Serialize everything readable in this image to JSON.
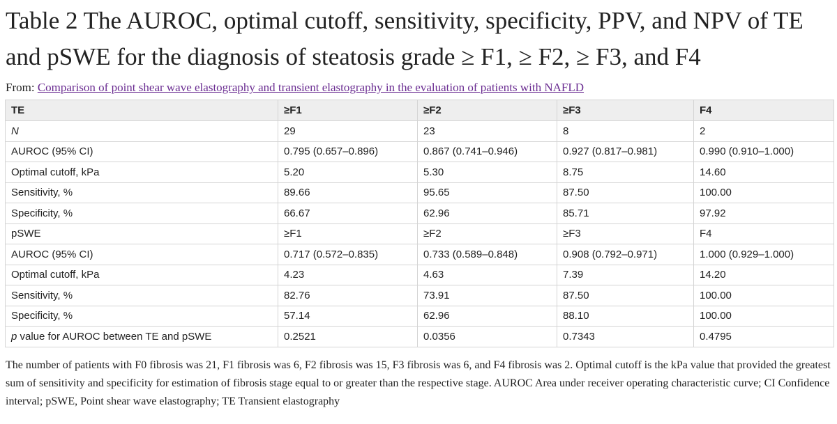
{
  "title": "Table 2 The AUROC, optimal cutoff, sensitivity, specificity, PPV, and NPV of TE and pSWE for the diagnosis of steatosis grade ≥ F1, ≥ F2, ≥ F3, and F4",
  "from_label": "From:",
  "from_link": "Comparison of point shear wave elastography and transient elastography in the evaluation of patients with NAFLD",
  "table": {
    "headers": [
      "TE",
      "≥F1",
      "≥F2",
      "≥F3",
      "F4"
    ],
    "rows": [
      {
        "label": "N",
        "label_italic": true,
        "cells": [
          "29",
          "23",
          "8",
          "2"
        ]
      },
      {
        "label": "AUROC (95% CI)",
        "cells": [
          "0.795 (0.657–0.896)",
          "0.867 (0.741–0.946)",
          "0.927 (0.817–0.981)",
          "0.990 (0.910–1.000)"
        ]
      },
      {
        "label": "Optimal cutoff, kPa",
        "cells": [
          "5.20",
          "5.30",
          "8.75",
          "14.60"
        ]
      },
      {
        "label": "Sensitivity, %",
        "cells": [
          "89.66",
          "95.65",
          "87.50",
          "100.00"
        ]
      },
      {
        "label": "Specificity, %",
        "cells": [
          "66.67",
          "62.96",
          "85.71",
          "97.92"
        ]
      },
      {
        "label": "pSWE",
        "cells": [
          "≥F1",
          "≥F2",
          "≥F3",
          "F4"
        ]
      },
      {
        "label": "AUROC (95% CI)",
        "cells": [
          "0.717 (0.572–0.835)",
          "0.733 (0.589–0.848)",
          "0.908 (0.792–0.971)",
          "1.000 (0.929–1.000)"
        ]
      },
      {
        "label": "Optimal cutoff, kPa",
        "cells": [
          "4.23",
          "4.63",
          "7.39",
          "14.20"
        ]
      },
      {
        "label": "Sensitivity, %",
        "cells": [
          "82.76",
          "73.91",
          "87.50",
          "100.00"
        ]
      },
      {
        "label": "Specificity, %",
        "cells": [
          "57.14",
          "62.96",
          "88.10",
          "100.00"
        ]
      },
      {
        "label_prefix": "p",
        "label": " value for AUROC between TE and pSWE",
        "cells": [
          "0.2521",
          "0.0356",
          "0.7343",
          "0.4795"
        ]
      }
    ]
  },
  "footnote": "The number of patients with F0 fibrosis was 21, F1 fibrosis was 6, F2 fibrosis was 15, F3 fibrosis was 6, and F4 fibrosis was 2. Optimal cutoff is the kPa value that provided the greatest sum of sensitivity and specificity for estimation of fibrosis stage equal to or greater than the respective stage. AUROC Area under receiver operating characteristic curve; CI Confidence interval; pSWE, Point shear wave elastography; TE Transient elastography"
}
